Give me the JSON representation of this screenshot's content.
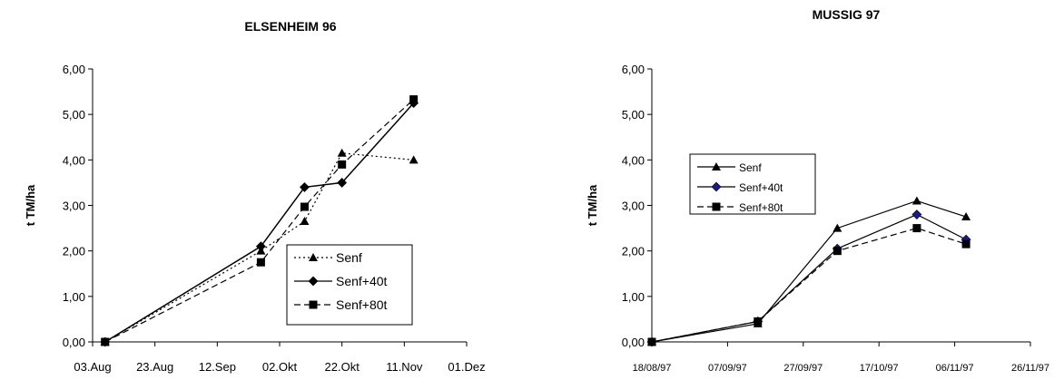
{
  "chart_data": [
    {
      "type": "line",
      "title": "ELSENHEIM 96",
      "ylabel": "t TM/ha",
      "xlabel": "",
      "ylim": [
        0,
        6
      ],
      "yticks": [
        "0,00",
        "1,00",
        "2,00",
        "3,00",
        "4,00",
        "5,00",
        "6,00"
      ],
      "xlim": [
        "1996-08-03",
        "1996-12-01"
      ],
      "xticks": [
        {
          "date": "1996-08-03",
          "label": "03.Aug"
        },
        {
          "date": "1996-08-23",
          "label": "23.Aug"
        },
        {
          "date": "1996-09-12",
          "label": "12.Sep"
        },
        {
          "date": "1996-10-02",
          "label": "02.Okt"
        },
        {
          "date": "1996-10-22",
          "label": "22.Okt"
        },
        {
          "date": "1996-11-11",
          "label": "11.Nov"
        },
        {
          "date": "1996-12-01",
          "label": "01.Dez"
        }
      ],
      "grid": false,
      "legend_position": "bottom-right",
      "series": [
        {
          "name": "Senf",
          "marker": "triangle",
          "dash": "dotted",
          "x": [
            "1996-08-07",
            "1996-09-26",
            "1996-10-10",
            "1996-10-22",
            "1996-11-14"
          ],
          "values": [
            0.0,
            2.0,
            2.65,
            4.15,
            4.0
          ]
        },
        {
          "name": "Senf+40t",
          "marker": "diamond",
          "dash": "solid",
          "x": [
            "1996-08-07",
            "1996-09-26",
            "1996-10-10",
            "1996-10-22",
            "1996-11-14"
          ],
          "values": [
            0.0,
            2.1,
            3.4,
            3.5,
            5.25
          ]
        },
        {
          "name": "Senf+80t",
          "marker": "square",
          "dash": "dashed",
          "x": [
            "1996-08-07",
            "1996-09-26",
            "1996-10-10",
            "1996-10-22",
            "1996-11-14"
          ],
          "values": [
            0.0,
            1.75,
            2.97,
            3.9,
            5.33
          ]
        }
      ]
    },
    {
      "type": "line",
      "title": "MUSSIG 97",
      "ylabel": "t TM/ha",
      "xlabel": "",
      "ylim": [
        0,
        6
      ],
      "yticks": [
        "0,00",
        "1,00",
        "2,00",
        "3,00",
        "4,00",
        "5,00",
        "6,00"
      ],
      "xlim": [
        "1997-08-18",
        "1997-11-26"
      ],
      "xticks": [
        {
          "date": "1997-08-18",
          "label": "18/08/97"
        },
        {
          "date": "1997-09-07",
          "label": "07/09/97"
        },
        {
          "date": "1997-09-27",
          "label": "27/09/97"
        },
        {
          "date": "1997-10-17",
          "label": "17/10/97"
        },
        {
          "date": "1997-11-06",
          "label": "06/11/97"
        },
        {
          "date": "1997-11-26",
          "label": "26/11/97"
        }
      ],
      "grid": false,
      "legend_position": "top-left",
      "series": [
        {
          "name": "Senf",
          "marker": "triangle",
          "dash": "solid",
          "x": [
            "1997-08-18",
            "1997-09-15",
            "1997-10-06",
            "1997-10-27",
            "1997-11-09"
          ],
          "values": [
            0.0,
            0.4,
            2.5,
            3.1,
            2.75
          ]
        },
        {
          "name": "Senf+40t",
          "marker": "diamond",
          "dash": "solid",
          "x": [
            "1997-08-18",
            "1997-09-15",
            "1997-10-06",
            "1997-10-27",
            "1997-11-09"
          ],
          "values": [
            0.0,
            0.45,
            2.05,
            2.8,
            2.25
          ]
        },
        {
          "name": "Senf+80t",
          "marker": "square",
          "dash": "dashed",
          "x": [
            "1997-08-18",
            "1997-09-15",
            "1997-10-06",
            "1997-10-27",
            "1997-11-09"
          ],
          "values": [
            0.0,
            0.45,
            2.0,
            2.5,
            2.15
          ]
        }
      ]
    }
  ]
}
